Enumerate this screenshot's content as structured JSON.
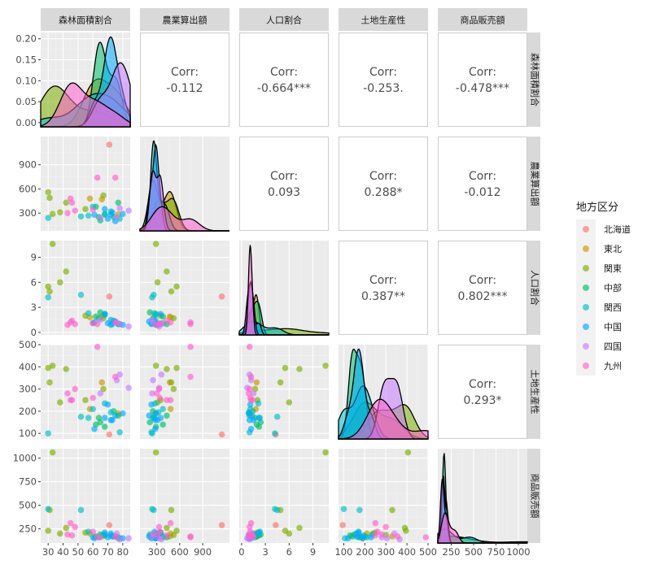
{
  "chart_data": {
    "type": "scatter-matrix",
    "variables": [
      "森林面積割合",
      "農業算出額",
      "人口割合",
      "土地生産性",
      "商品販売額"
    ],
    "axes": [
      {
        "range": [
          25,
          85
        ],
        "ticks": [
          30,
          40,
          50,
          60,
          70,
          80
        ],
        "tick_labels": [
          "30",
          "40",
          "50",
          "60",
          "70",
          "80"
        ]
      },
      {
        "range": [
          80,
          1250
        ],
        "ticks": [
          300,
          600,
          900
        ],
        "tick_labels": [
          "300",
          "600",
          "900"
        ]
      },
      {
        "range": [
          -0.3,
          11
        ],
        "ticks": [
          0,
          3,
          6,
          9
        ],
        "tick_labels": [
          "0",
          "3",
          "6",
          "9"
        ]
      },
      {
        "range": [
          75,
          500
        ],
        "ticks": [
          100,
          200,
          300,
          400,
          500
        ],
        "tick_labels": [
          "100",
          "200",
          "300",
          "400",
          "500"
        ]
      },
      {
        "range": [
          100,
          1100
        ],
        "ticks": [
          250,
          500,
          750,
          1000
        ],
        "tick_labels": [
          "250",
          "500",
          "750",
          "1000"
        ]
      }
    ],
    "diag_y_axis": {
      "range": [
        -0.01,
        0.215
      ],
      "ticks": [
        0.0,
        0.05,
        0.1,
        0.15,
        0.2
      ],
      "tick_labels": [
        "0.00",
        "0.05",
        "0.10",
        "0.15",
        "0.20"
      ]
    },
    "correlations": [
      {
        "row": 0,
        "col": 1,
        "label": "Corr:",
        "value": "-0.112"
      },
      {
        "row": 0,
        "col": 2,
        "label": "Corr:",
        "value": "-0.664***"
      },
      {
        "row": 0,
        "col": 3,
        "label": "Corr:",
        "value": "-0.253."
      },
      {
        "row": 0,
        "col": 4,
        "label": "Corr:",
        "value": "-0.478***"
      },
      {
        "row": 1,
        "col": 2,
        "label": "Corr:",
        "value": "0.093"
      },
      {
        "row": 1,
        "col": 3,
        "label": "Corr:",
        "value": "0.288*"
      },
      {
        "row": 1,
        "col": 4,
        "label": "Corr:",
        "value": "-0.012"
      },
      {
        "row": 2,
        "col": 3,
        "label": "Corr:",
        "value": "0.387**"
      },
      {
        "row": 2,
        "col": 4,
        "label": "Corr:",
        "value": "0.802***"
      },
      {
        "row": 3,
        "col": 4,
        "label": "Corr:",
        "value": "0.293*"
      }
    ],
    "legend": {
      "title": "地方区分",
      "position": "right",
      "entries": [
        {
          "name": "北海道",
          "color": "#F8766D"
        },
        {
          "name": "東北",
          "color": "#CD9600"
        },
        {
          "name": "関東",
          "color": "#7CAE00"
        },
        {
          "name": "中部",
          "color": "#00BE67"
        },
        {
          "name": "関西",
          "color": "#00BFC4"
        },
        {
          "name": "中国",
          "color": "#00A9FF"
        },
        {
          "name": "四国",
          "color": "#C77CFF"
        },
        {
          "name": "九州",
          "color": "#FF61CC"
        }
      ]
    },
    "points": [
      {
        "region": "北海道",
        "values": [
          71,
          1150,
          4.3,
          95,
          290
        ]
      },
      {
        "region": "東北",
        "values": [
          66,
          470,
          1.9,
          330,
          170
        ]
      },
      {
        "region": "東北",
        "values": [
          77,
          285,
          1.0,
          190,
          150
        ]
      },
      {
        "region": "東北",
        "values": [
          58,
          480,
          1.8,
          210,
          200
        ]
      },
      {
        "region": "関東",
        "values": [
          33,
          290,
          10.6,
          405,
          1060
        ]
      },
      {
        "region": "関東",
        "values": [
          30,
          560,
          5.5,
          395,
          230
        ]
      },
      {
        "region": "関東",
        "values": [
          42,
          430,
          7.3,
          390,
          260
        ]
      },
      {
        "region": "関東",
        "values": [
          55,
          350,
          2.0,
          250,
          210
        ]
      },
      {
        "region": "関東",
        "values": [
          31,
          490,
          4.9,
          330,
          450
        ]
      },
      {
        "region": "関東",
        "values": [
          38,
          310,
          6.0,
          240,
          200
        ]
      },
      {
        "region": "関東",
        "values": [
          67,
          520,
          1.7,
          300,
          185
        ]
      },
      {
        "region": "中部",
        "values": [
          64,
          250,
          1.7,
          170,
          160
        ]
      },
      {
        "region": "中部",
        "values": [
          68,
          290,
          2.2,
          130,
          180
        ]
      },
      {
        "region": "中部",
        "values": [
          74,
          250,
          1.4,
          200,
          170
        ]
      },
      {
        "region": "中部",
        "values": [
          65,
          210,
          2.4,
          150,
          190
        ]
      },
      {
        "region": "中部",
        "values": [
          62,
          380,
          1.9,
          140,
          170
        ]
      },
      {
        "region": "中部",
        "values": [
          77,
          430,
          1.0,
          180,
          160
        ]
      },
      {
        "region": "関西",
        "values": [
          30,
          240,
          4.2,
          100,
          460
        ]
      },
      {
        "region": "関西",
        "values": [
          57,
          270,
          2.3,
          170,
          220
        ]
      },
      {
        "region": "関西",
        "values": [
          68,
          280,
          2.1,
          235,
          190
        ]
      },
      {
        "region": "関西",
        "values": [
          78,
          230,
          1.0,
          105,
          150
        ]
      },
      {
        "region": "関西",
        "values": [
          52,
          260,
          4.5,
          175,
          450
        ]
      },
      {
        "region": "関西",
        "values": [
          72,
          320,
          0.9,
          195,
          180
        ]
      },
      {
        "region": "関西",
        "values": [
          60,
          380,
          1.1,
          210,
          160
        ]
      },
      {
        "region": "中国",
        "values": [
          72,
          280,
          1.5,
          160,
          200
        ]
      },
      {
        "region": "中国",
        "values": [
          75,
          200,
          1.3,
          180,
          170
        ]
      },
      {
        "region": "中国",
        "values": [
          80,
          290,
          0.9,
          190,
          150
        ]
      },
      {
        "region": "中国",
        "values": [
          70,
          230,
          1.1,
          230,
          160
        ]
      },
      {
        "region": "中国",
        "values": [
          68,
          350,
          2.2,
          170,
          210
        ]
      },
      {
        "region": "中国",
        "values": [
          61,
          280,
          1.2,
          120,
          150
        ]
      },
      {
        "region": "中国",
        "values": [
          73,
          310,
          1.0,
          160,
          170
        ]
      },
      {
        "region": "四国",
        "values": [
          84,
          330,
          0.7,
          305,
          150
        ]
      },
      {
        "region": "四国",
        "values": [
          76,
          250,
          1.2,
          340,
          200
        ]
      },
      {
        "region": "四国",
        "values": [
          65,
          240,
          1.5,
          280,
          160
        ]
      },
      {
        "region": "四国",
        "values": [
          78,
          360,
          1.0,
          365,
          140
        ]
      },
      {
        "region": "九州",
        "values": [
          45,
          480,
          1.2,
          250,
          310
        ]
      },
      {
        "region": "九州",
        "values": [
          63,
          740,
          1.0,
          490,
          160
        ]
      },
      {
        "region": "九州",
        "values": [
          75,
          740,
          1.2,
          355,
          170
        ]
      },
      {
        "region": "九州",
        "values": [
          46,
          430,
          1.4,
          250,
          180
        ]
      },
      {
        "region": "九州",
        "values": [
          48,
          330,
          1.0,
          300,
          270
        ]
      },
      {
        "region": "九州",
        "values": [
          60,
          340,
          1.1,
          260,
          220
        ]
      },
      {
        "region": "九州",
        "values": [
          43,
          300,
          0.9,
          280,
          190
        ]
      }
    ]
  }
}
